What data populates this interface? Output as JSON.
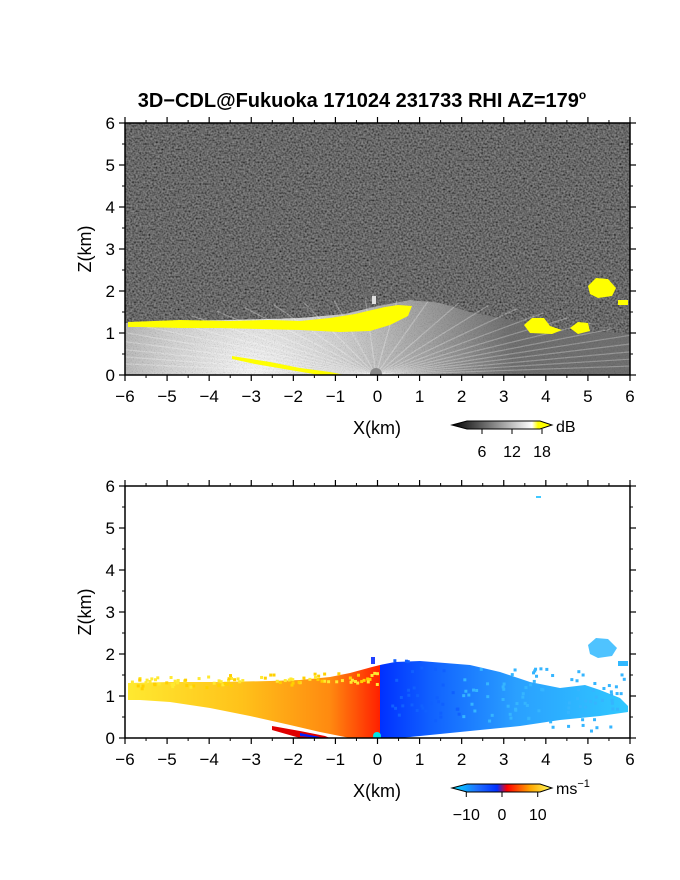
{
  "chart_data": [
    {
      "type": "heatmap",
      "title": "3D−CDL@Fukuoka 171024 231733 RHI AZ=179",
      "title_superscript": "o",
      "xlabel": "X(km)",
      "ylabel": "Z(km)",
      "xlim": [
        -6,
        6
      ],
      "ylim": [
        0,
        6
      ],
      "xticks": [
        "−6",
        "−5",
        "−4",
        "−3",
        "−2",
        "−1",
        "0",
        "1",
        "2",
        "3",
        "4",
        "5",
        "6"
      ],
      "yticks": [
        "0",
        "1",
        "2",
        "3",
        "4",
        "5",
        "6"
      ],
      "background": "dark noisy gray (no signal)",
      "colorbar": {
        "label": "dB",
        "ticks": [
          "6",
          "12",
          "18"
        ],
        "tick_values": [
          6,
          12,
          18
        ],
        "range": [
          0,
          20
        ],
        "colors": [
          "#000000",
          "#ffffff",
          "#ffff00"
        ]
      },
      "features": [
        {
          "desc": "high-SNR layer top (yellow)",
          "x": [
            -6,
            -4,
            -2,
            0,
            0.7
          ],
          "z": [
            1.25,
            1.2,
            1.15,
            1.3,
            1.65
          ]
        },
        {
          "desc": "lower cloud patch",
          "x": [
            3.2,
            3.9
          ],
          "z": [
            1.1,
            1.3
          ]
        },
        {
          "desc": "upper cloud patch",
          "x": [
            5.0,
            5.5
          ],
          "z": [
            1.9,
            2.25
          ]
        }
      ]
    },
    {
      "type": "heatmap",
      "xlabel": "X(km)",
      "ylabel": "Z(km)",
      "xlim": [
        -6,
        6
      ],
      "ylim": [
        0,
        6
      ],
      "xticks": [
        "−6",
        "−5",
        "−4",
        "−3",
        "−2",
        "−1",
        "0",
        "1",
        "2",
        "3",
        "4",
        "5",
        "6"
      ],
      "yticks": [
        "0",
        "1",
        "2",
        "3",
        "4",
        "5",
        "6"
      ],
      "colorbar": {
        "label": "ms",
        "label_superscript": "−1",
        "ticks": [
          "−10",
          "0",
          "10"
        ],
        "tick_values": [
          -10,
          0,
          10
        ],
        "range": [
          -14,
          14
        ],
        "colors": [
          "#00e5ff",
          "#0050ff",
          "#ff0000",
          "#ffaa00",
          "#ffff40"
        ]
      },
      "features": [
        {
          "desc": "receding flow (x<0), velocity ~ +6 to +12",
          "x": [
            -6,
            0
          ],
          "z": [
            0,
            1.3
          ]
        },
        {
          "desc": "approaching flow (x>0), velocity ~ -6 to -12",
          "x": [
            0,
            6
          ],
          "z": [
            0,
            1.25
          ]
        },
        {
          "desc": "isolated patch",
          "x": [
            5.0,
            5.6
          ],
          "z": [
            1.9,
            2.2
          ]
        }
      ]
    }
  ]
}
